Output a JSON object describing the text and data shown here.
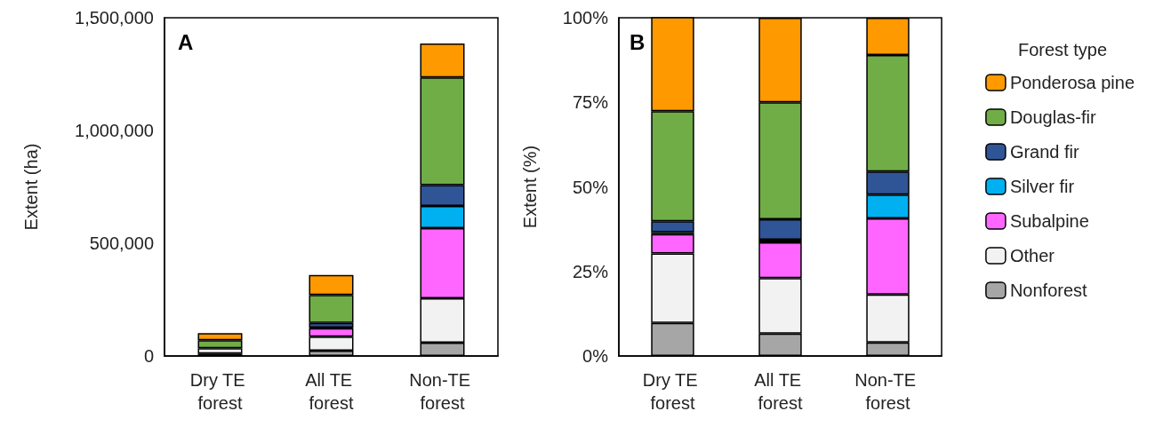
{
  "chart_data": [
    {
      "type": "bar",
      "title": "A",
      "ylabel": "Extent (ha)",
      "categories": [
        "Dry TE forest",
        "All TE forest",
        "Non-TE forest"
      ],
      "stacked": true,
      "legend": false,
      "grid": false,
      "ylim": [
        0,
        1500000
      ],
      "yticks": [
        0,
        {
          "value": 500000,
          "label": "500,000"
        },
        {
          "value": 1000000,
          "label": "1,000,000"
        },
        {
          "value": 1500000,
          "label": "1,500,000"
        }
      ],
      "series": [
        {
          "color": "#a6a6a6",
          "values": [
            11000,
            24000,
            59000
          ]
        },
        {
          "color": "#f2f2f2",
          "values": [
            23000,
            62000,
            197000
          ]
        },
        {
          "color": "#ff66ff",
          "values": [
            null,
            37000,
            311000
          ]
        },
        {
          "color": "#00b0f0",
          "values": [
            null,
            3000,
            98000
          ]
        },
        {
          "color": "#2f5597",
          "values": [
            null,
            21000,
            93000
          ]
        },
        {
          "color": "#70ad47",
          "values": [
            36000,
            124000,
            477000
          ]
        },
        {
          "color": "#ff9900",
          "values": [
            31000,
            88000,
            151000
          ]
        }
      ]
    },
    {
      "type": "bar",
      "title": "B",
      "ylabel": "Extent (%)",
      "legend_title": "Forest type",
      "categories": [
        "Dry TE forest",
        "All TE forest",
        "Non-TE forest"
      ],
      "stacked": true,
      "legend": "right",
      "grid": false,
      "ylim": [
        0,
        100
      ],
      "yticks": [
        {
          "value": 0,
          "label": "0%"
        },
        {
          "value": 25,
          "label": "25%"
        },
        {
          "value": 50,
          "label": "50%"
        },
        {
          "value": 75,
          "label": "75%"
        },
        {
          "value": 100,
          "label": "100%"
        }
      ],
      "series": [
        {
          "name": "Nonforest",
          "color": "#a6a6a6",
          "values": [
            9.8,
            6.6,
            4.0
          ]
        },
        {
          "name": "Other",
          "color": "#f2f2f2",
          "values": [
            20.5,
            16.4,
            14.2
          ]
        },
        {
          "name": "Subalpine",
          "color": "#ff66ff",
          "values": [
            5.7,
            10.6,
            22.5
          ]
        },
        {
          "name": "Silver fir",
          "color": "#00b0f0",
          "values": [
            0.6,
            0.8,
            7.0
          ]
        },
        {
          "name": "Grand fir",
          "color": "#2f5597",
          "values": [
            3.2,
            6.0,
            6.8
          ]
        },
        {
          "name": "Douglas-fir",
          "color": "#70ad47",
          "values": [
            32.6,
            34.6,
            34.5
          ]
        },
        {
          "name": "Ponderosa pine",
          "color": "#ff9900",
          "values": [
            27.9,
            25.0,
            11.0
          ]
        }
      ]
    }
  ]
}
